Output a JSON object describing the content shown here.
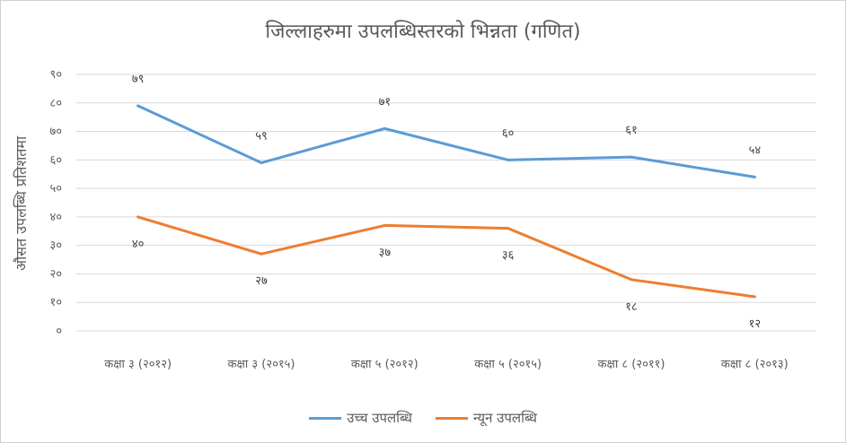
{
  "chart_data": {
    "type": "line",
    "title": "जिल्लाहरुमा उपलब्धिस्तरको भिन्नता (गणित)",
    "ylabel": "औसत उपलब्धि प्रतिशतमा",
    "xlabel": "",
    "ylim": [
      0,
      90
    ],
    "yticks": [
      0,
      10,
      20,
      30,
      40,
      50,
      60,
      70,
      80,
      90
    ],
    "ytick_labels": [
      "०",
      "१०",
      "२०",
      "३०",
      "४०",
      "५०",
      "६०",
      "७०",
      "८०",
      "९०"
    ],
    "grid": true,
    "legend_position": "bottom",
    "categories": [
      "कक्षा ३ (२०१२)",
      "कक्षा ३ (२०१५)",
      "कक्षा ५ (२०१२)",
      "कक्षा ५ (२०१५)",
      "कक्षा ८ (२०११)",
      "कक्षा ८ (२०१३)"
    ],
    "series": [
      {
        "name": "उच्च उपलब्धि",
        "color": "#5B9BD5",
        "values": [
          79,
          59,
          71,
          60,
          61,
          54
        ],
        "labels": [
          "७९",
          "५९",
          "७१",
          "६०",
          "६१",
          "५४"
        ]
      },
      {
        "name": "न्यून उपलब्धि",
        "color": "#ED7D31",
        "values": [
          40,
          27,
          37,
          36,
          18,
          12
        ],
        "labels": [
          "४०",
          "२७",
          "३७",
          "३६",
          "१८",
          "१२"
        ]
      }
    ]
  }
}
